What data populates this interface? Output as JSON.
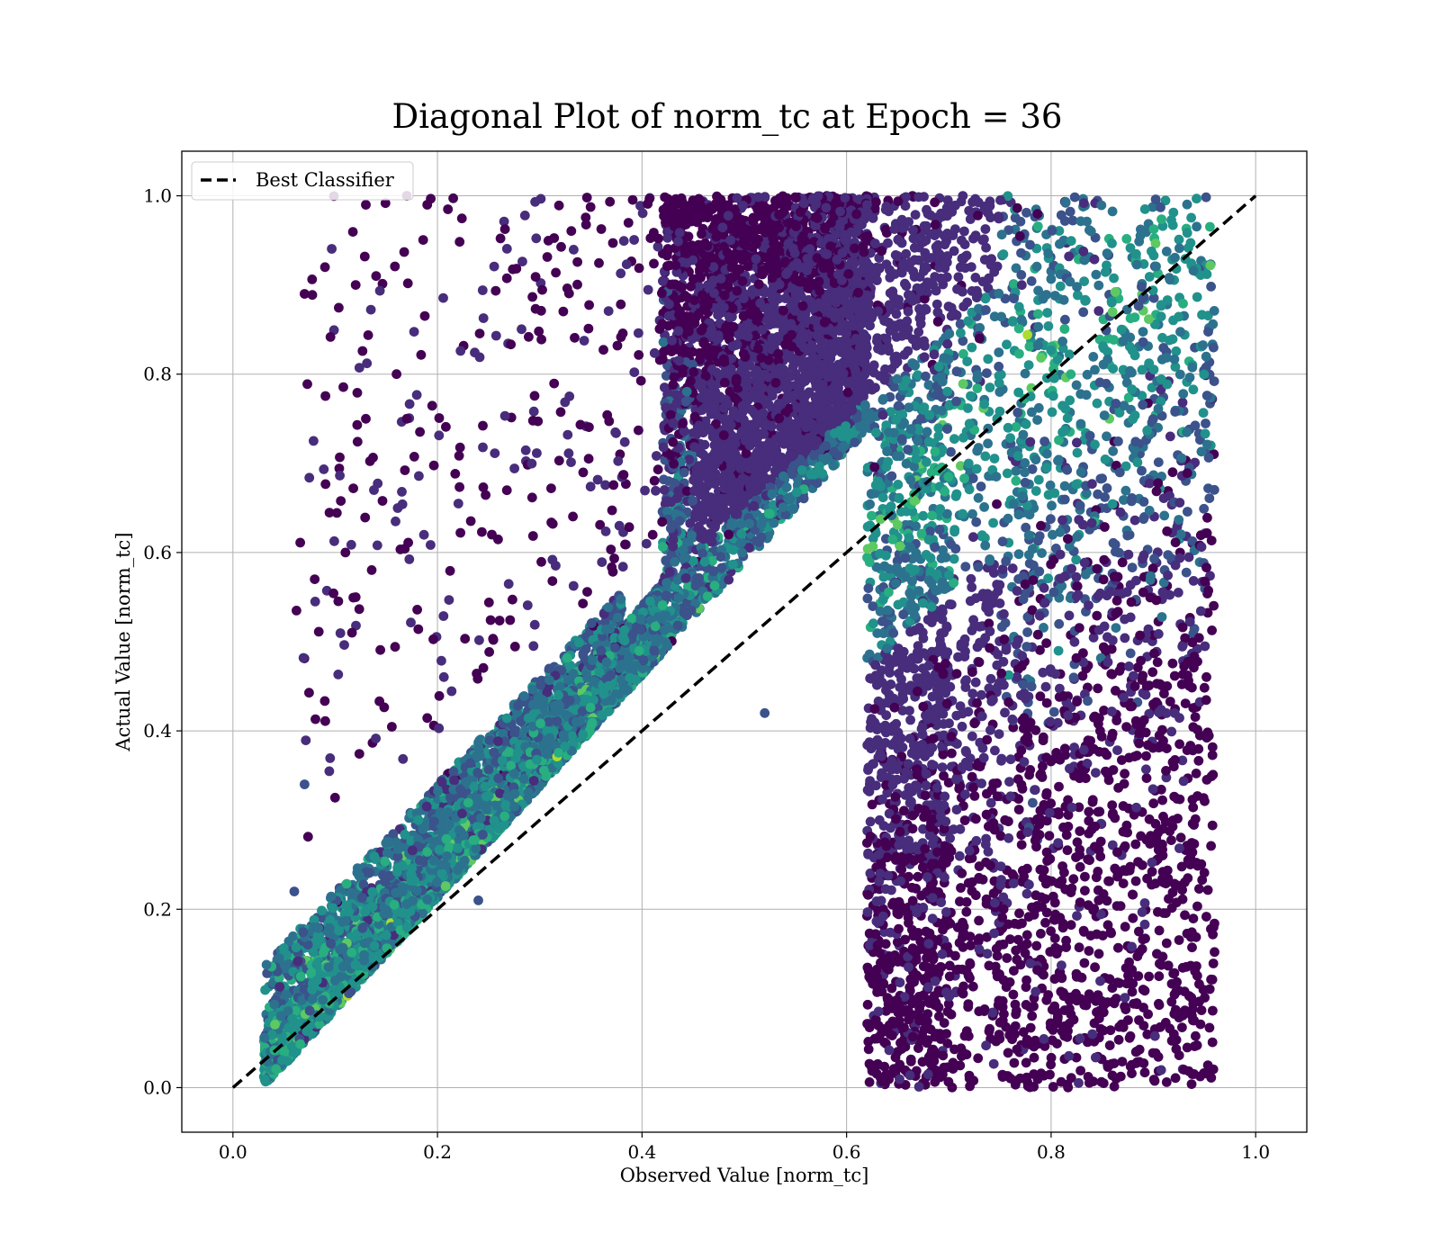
{
  "chart_data": {
    "type": "scatter",
    "title": "Diagonal Plot of norm_tc at Epoch = 36",
    "xlabel": "Observed Value [norm_tc]",
    "ylabel": "Actual Value [norm_tc]",
    "xlim": [
      -0.05,
      1.05
    ],
    "ylim": [
      -0.05,
      1.05
    ],
    "x_ticks": [
      "0.0",
      "0.2",
      "0.4",
      "0.6",
      "0.8",
      "1.0"
    ],
    "y_ticks": [
      "0.0",
      "0.2",
      "0.4",
      "0.6",
      "0.8",
      "1.0"
    ],
    "grid": true,
    "legend_position": "upper-left",
    "colormap": "viridis",
    "colors": [
      "#440154",
      "#472d7b",
      "#3b528b",
      "#2c728e",
      "#21918c",
      "#28ae80",
      "#5ec962",
      "#addc30"
    ],
    "series": [
      {
        "name": "Best Classifier",
        "kind": "line",
        "style": "dashed",
        "color": "#000000",
        "x": [
          0.0,
          1.0
        ],
        "y": [
          0.0,
          1.0
        ]
      }
    ],
    "scatter_summary": {
      "approx_points": 30000,
      "x_range": [
        0.03,
        0.96
      ],
      "y_range": [
        0.0,
        1.0
      ]
    },
    "sample_points": [
      [
        0.07,
        0.89
      ],
      [
        0.09,
        0.92
      ],
      [
        0.13,
        0.99
      ],
      [
        0.12,
        0.9
      ],
      [
        0.14,
        0.91
      ],
      [
        0.08,
        0.57
      ],
      [
        0.11,
        0.6
      ],
      [
        0.12,
        0.55
      ],
      [
        0.07,
        0.34
      ],
      [
        0.06,
        0.22
      ],
      [
        0.16,
        0.8
      ],
      [
        0.13,
        0.75
      ],
      [
        0.17,
        0.75
      ],
      [
        0.19,
        0.99
      ],
      [
        0.17,
        1.0
      ],
      [
        0.92,
        0.36
      ],
      [
        0.91,
        0.23
      ],
      [
        0.92,
        0.06
      ],
      [
        0.93,
        0.02
      ],
      [
        0.9,
        0.43
      ],
      [
        0.88,
        0.19
      ],
      [
        0.89,
        0.11
      ],
      [
        0.52,
        0.42
      ],
      [
        0.79,
        0.63
      ],
      [
        0.36,
        0.49
      ],
      [
        0.24,
        0.21
      ],
      [
        0.73,
        0.84
      ]
    ]
  }
}
